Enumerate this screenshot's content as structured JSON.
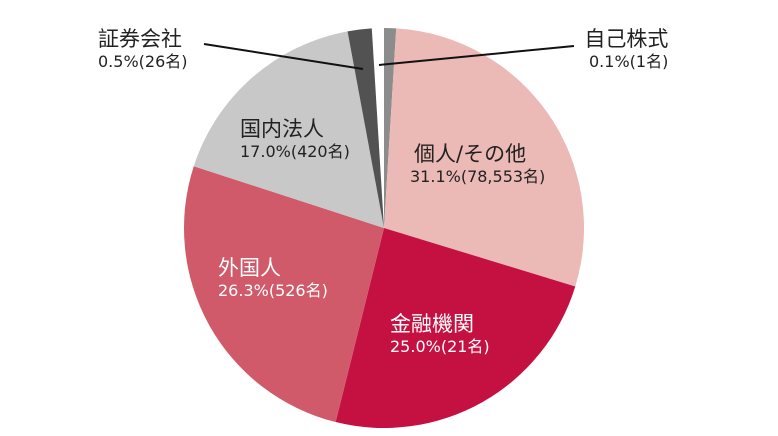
{
  "chart_data": {
    "type": "pie",
    "title": "",
    "center": [
      384,
      228
    ],
    "radius": 200,
    "slices": [
      {
        "label": "自己株式",
        "percent": 0.1,
        "count": "1名",
        "value_text": "0.1%(1名)",
        "color": "#8c8c8c",
        "start_deg": 0,
        "end_deg": 3.5
      },
      {
        "label": "個人/その他",
        "percent": 31.1,
        "count": "78,553名",
        "value_text": "31.1%(78,553名)",
        "color": "#ebb9b6",
        "start_deg": 3.5,
        "end_deg": 107
      },
      {
        "label": "金融機関",
        "percent": 25.0,
        "count": "21名",
        "value_text": "25.0%(21名)",
        "color": "#c51142",
        "start_deg": 107,
        "end_deg": 194
      },
      {
        "label": "外国人",
        "percent": 26.3,
        "count": "526名",
        "value_text": "26.3%(526名)",
        "color": "#d05a69",
        "start_deg": 194,
        "end_deg": 288
      },
      {
        "label": "国内法人",
        "percent": 17.0,
        "count": "420名",
        "value_text": "17.0%(420名)",
        "color": "#c8c8c8",
        "start_deg": 288,
        "end_deg": 349.5
      },
      {
        "label": "証券会社",
        "percent": 0.5,
        "count": "26名",
        "value_text": "0.5%(26名)",
        "color": "#525252",
        "start_deg": 349.5,
        "end_deg": 356.5
      }
    ]
  },
  "labels": {
    "jiko": {
      "name": "自己株式",
      "value": "0.1%(1名)"
    },
    "kojin": {
      "name": "個人/その他",
      "value": "31.1%(78,553名)"
    },
    "kinyu": {
      "name": "金融機関",
      "value": "25.0%(21名)"
    },
    "gaikoku": {
      "name": "外国人",
      "value": "26.3%(526名)"
    },
    "kokunai": {
      "name": "国内法人",
      "value": "17.0%(420名)"
    },
    "shoken": {
      "name": "証券会社",
      "value": "0.5%(26名)"
    }
  }
}
